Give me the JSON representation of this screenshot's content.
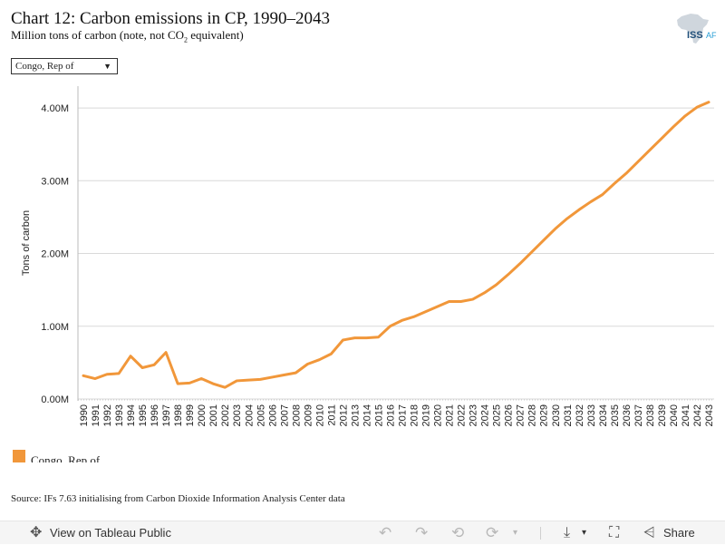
{
  "header": {
    "title": "Chart 12: Carbon emissions in CP, 1990–2043",
    "subtitle_pre": "Million tons of carbon (note, not CO",
    "subtitle_sub": "2",
    "subtitle_post": " equivalent)",
    "logo_text": "ISS",
    "logo_suffix": "AF"
  },
  "filter": {
    "selected": "Congo, Rep of"
  },
  "source": "Source: IFs 7.63 initialising from Carbon Dioxide Information Analysis Center data",
  "toolbar": {
    "view_label": "View on Tableau Public",
    "share_label": "Share"
  },
  "colors": {
    "series": "#F1973A",
    "grid": "#d9d9d9",
    "axis": "#bbbbbb"
  },
  "icons": {
    "view": "tableau-logo-icon",
    "undo": "undo-icon",
    "redo": "redo-icon",
    "revert": "revert-icon",
    "refresh": "refresh-icon",
    "download": "download-icon",
    "fullscreen": "fullscreen-icon",
    "share": "share-icon"
  },
  "chart_data": {
    "type": "line",
    "ylabel": "Tons of carbon",
    "ylim": [
      0,
      4300000
    ],
    "yticks": [
      0,
      1000000,
      2000000,
      3000000,
      4000000
    ],
    "ytick_labels": [
      "0.00M",
      "1.00M",
      "2.00M",
      "3.00M",
      "4.00M"
    ],
    "grid": true,
    "legend_position": "bottom-left",
    "x": [
      1990,
      1991,
      1992,
      1993,
      1994,
      1995,
      1996,
      1997,
      1998,
      1999,
      2000,
      2001,
      2002,
      2003,
      2004,
      2005,
      2006,
      2007,
      2008,
      2009,
      2010,
      2011,
      2012,
      2013,
      2014,
      2015,
      2016,
      2017,
      2018,
      2019,
      2020,
      2021,
      2022,
      2023,
      2024,
      2025,
      2026,
      2027,
      2028,
      2029,
      2030,
      2031,
      2032,
      2033,
      2034,
      2035,
      2036,
      2037,
      2038,
      2039,
      2040,
      2041,
      2042,
      2043
    ],
    "series": [
      {
        "name": "Congo, Rep of",
        "color": "#F1973A",
        "values": [
          320000,
          280000,
          340000,
          350000,
          590000,
          430000,
          470000,
          640000,
          210000,
          220000,
          280000,
          210000,
          160000,
          250000,
          260000,
          270000,
          300000,
          330000,
          360000,
          480000,
          540000,
          620000,
          810000,
          840000,
          840000,
          850000,
          1000000,
          1080000,
          1130000,
          1200000,
          1270000,
          1340000,
          1340000,
          1370000,
          1460000,
          1570000,
          1710000,
          1860000,
          2020000,
          2180000,
          2340000,
          2480000,
          2600000,
          2710000,
          2810000,
          2960000,
          3100000,
          3260000,
          3420000,
          3580000,
          3740000,
          3890000,
          4010000,
          4080000
        ]
      }
    ]
  }
}
